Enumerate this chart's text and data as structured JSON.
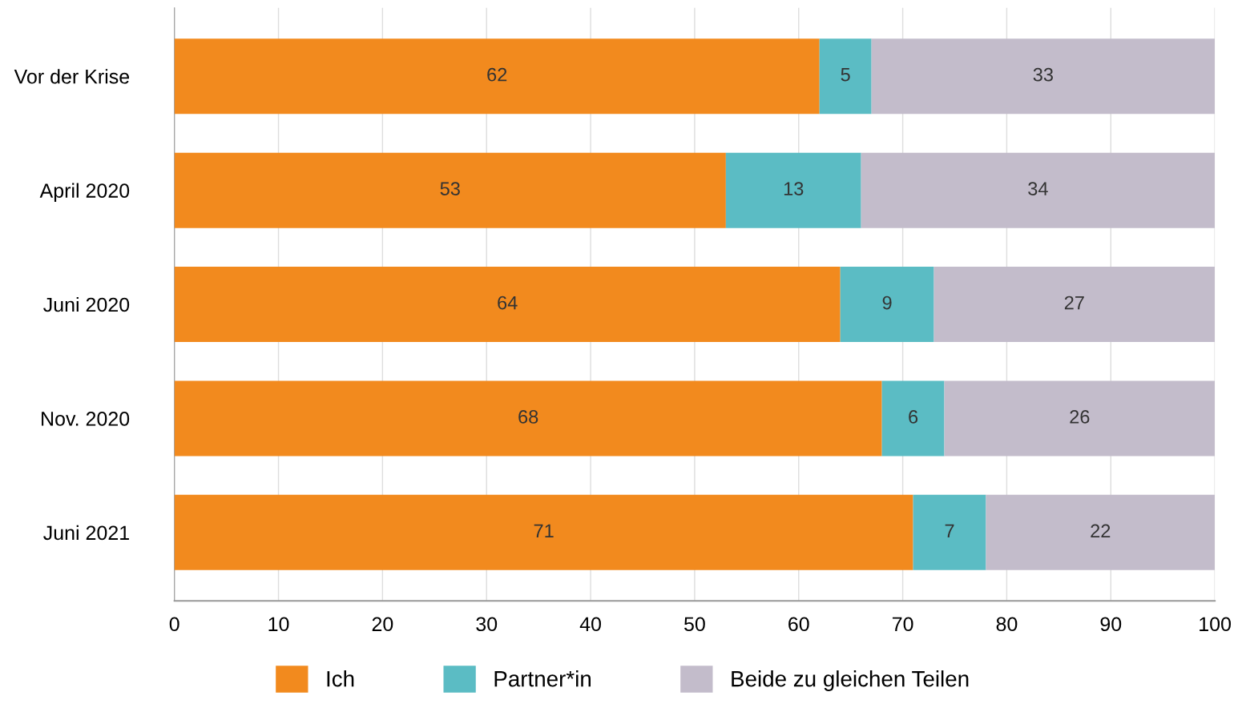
{
  "chart_data": {
    "type": "bar",
    "orientation": "horizontal",
    "stacked": true,
    "data_labels": true,
    "categories": [
      "Vor der Krise",
      "April 2020",
      "Juni 2020",
      "Nov. 2020",
      "Juni 2021"
    ],
    "series": [
      {
        "name": "Ich",
        "color": "#f28a1e",
        "values": [
          62,
          53,
          64,
          68,
          71
        ]
      },
      {
        "name": "Partner*in",
        "color": "#5bbcc4",
        "values": [
          5,
          13,
          9,
          6,
          7
        ]
      },
      {
        "name": "Beide zu gleichen Teilen",
        "color": "#c3bccb",
        "values": [
          33,
          34,
          27,
          26,
          22
        ]
      }
    ],
    "xlim": [
      0,
      100
    ],
    "xticks": [
      0,
      10,
      20,
      30,
      40,
      50,
      60,
      70,
      80,
      90,
      100
    ],
    "grid": "x",
    "legend": "bottom"
  }
}
